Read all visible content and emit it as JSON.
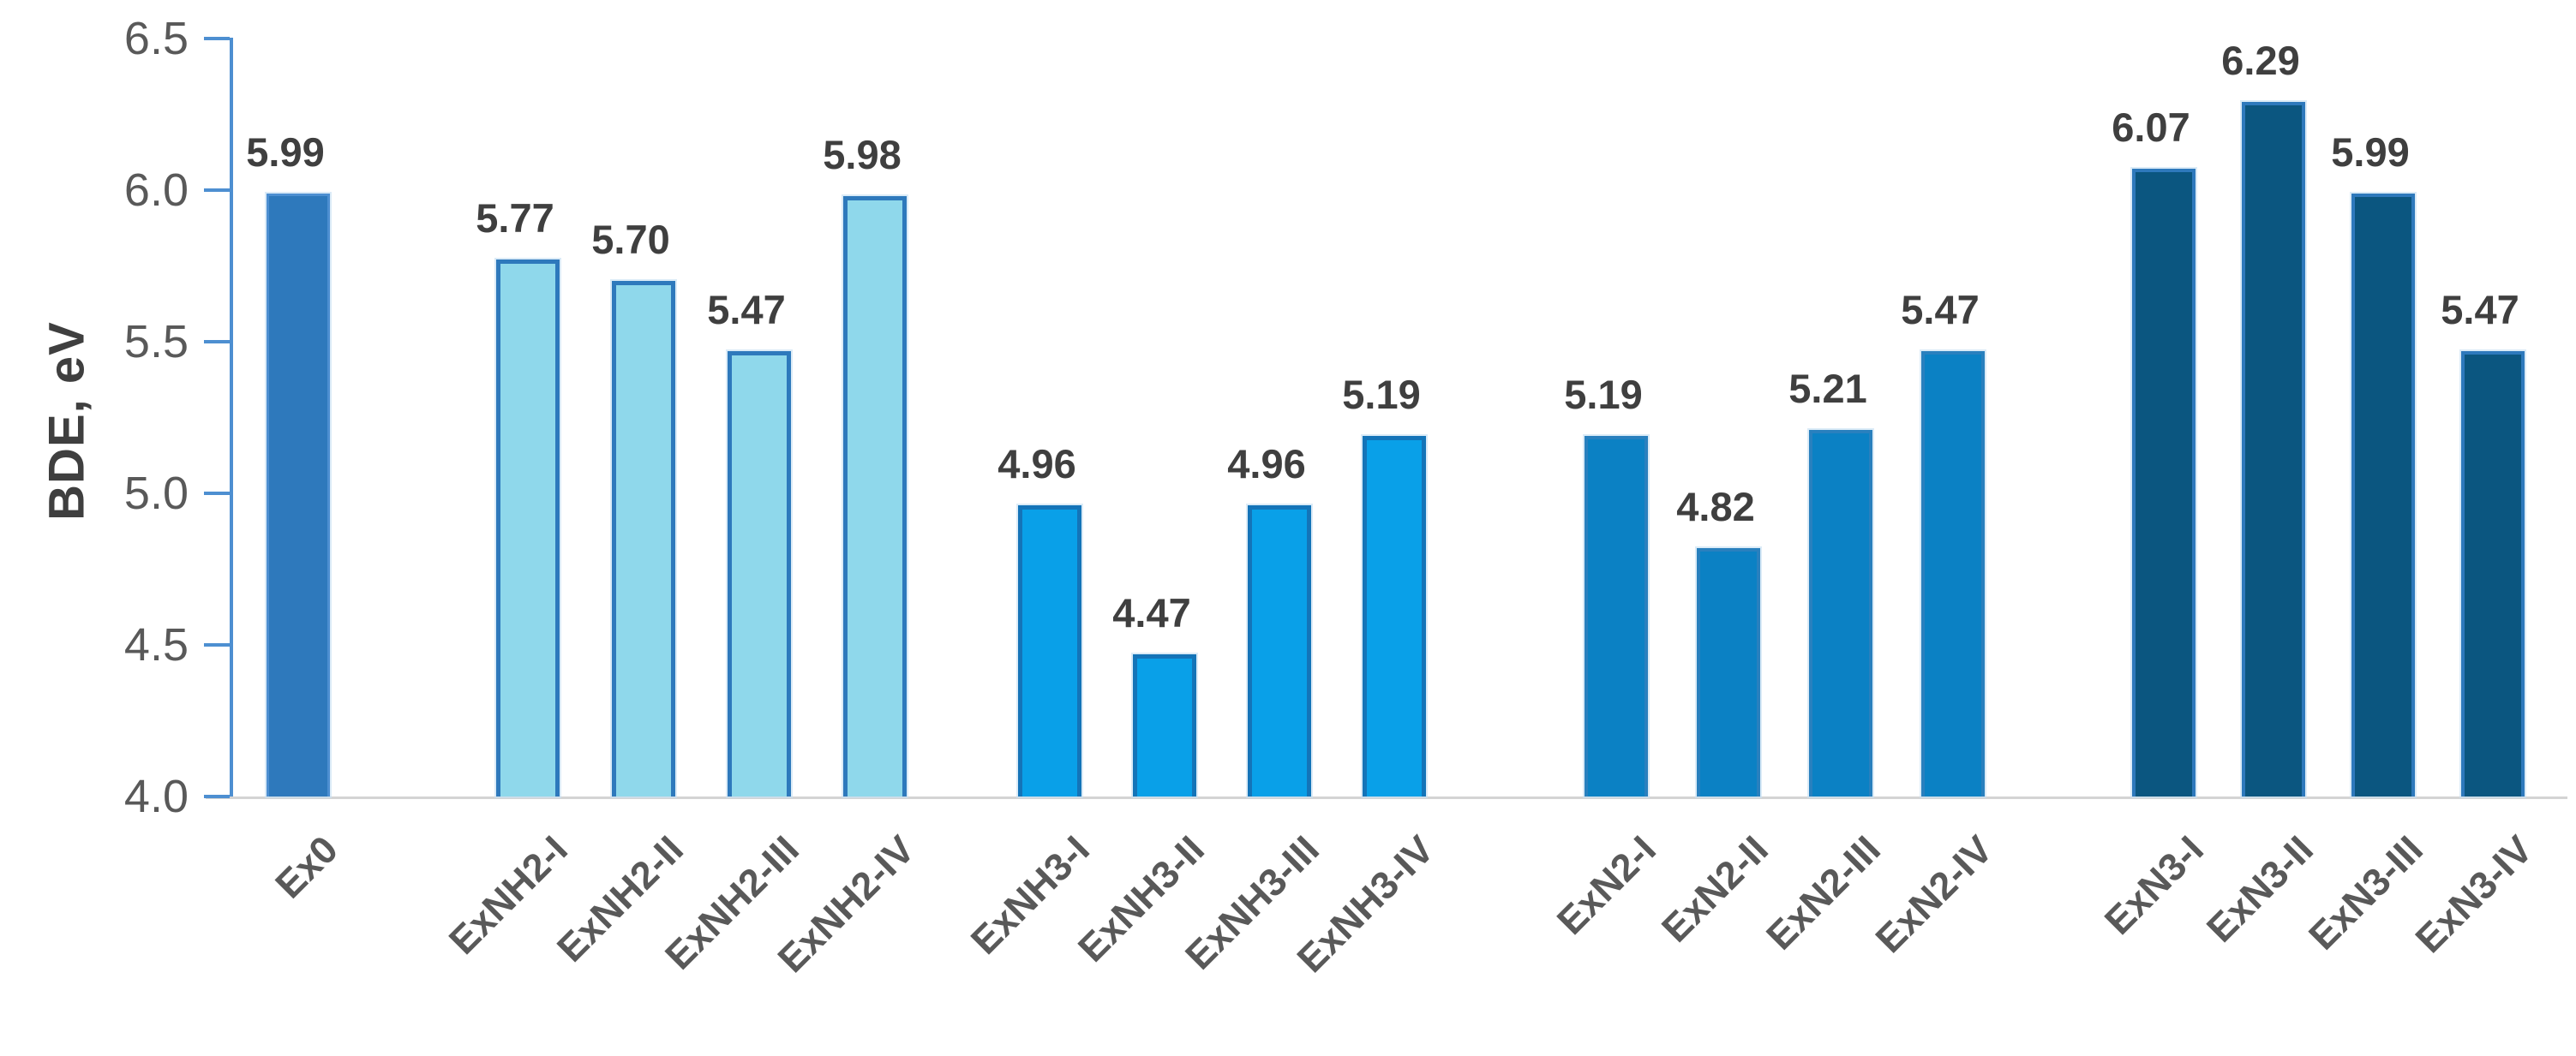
{
  "chart_data": {
    "type": "bar",
    "title": "",
    "xlabel": "",
    "ylabel": "BDE, eV",
    "ylim": [
      4.0,
      6.5
    ],
    "grid": false,
    "legend": "none",
    "yticks": [
      {
        "label": "6.5",
        "value": 6.5
      },
      {
        "label": "6.0",
        "value": 6.0
      },
      {
        "label": "5.5",
        "value": 5.5
      },
      {
        "label": "5.0",
        "value": 5.0
      },
      {
        "label": "4.5",
        "value": 4.5
      },
      {
        "label": "4.0",
        "value": 4.0
      }
    ],
    "categories": [
      "Ex0",
      "ExNH2-I",
      "ExNH2-II",
      "ExNH2-III",
      "ExNH2-IV",
      "ExNH3-I",
      "ExNH3-II",
      "ExNH3-III",
      "ExNH3-IV",
      "ExN2-I",
      "ExN2-II",
      "ExN2-III",
      "ExN2-IV",
      "ExN3-I",
      "ExN3-II",
      "ExN3-III",
      "ExN3-IV"
    ],
    "values": [
      5.99,
      5.77,
      5.7,
      5.47,
      5.98,
      4.96,
      4.47,
      4.96,
      5.19,
      5.19,
      4.82,
      5.21,
      5.47,
      6.07,
      6.29,
      5.99,
      5.47
    ],
    "data_labels": [
      "5.99",
      "5.77",
      "5.70",
      "5.47",
      "5.98",
      "4.96",
      "4.47",
      "4.96",
      "5.19",
      "5.19",
      "4.82",
      "5.21",
      "5.47",
      "6.07",
      "6.29",
      "5.99",
      "5.47"
    ],
    "groups": [
      {
        "name": "Ex0",
        "indices": [
          0
        ],
        "fill": "#2e79bc",
        "border": "#4d8fd1"
      },
      {
        "name": "ExNH2",
        "indices": [
          1,
          2,
          3,
          4
        ],
        "fill": "#8fd8eb",
        "border": "#2e79bc"
      },
      {
        "name": "ExNH3",
        "indices": [
          5,
          6,
          7,
          8
        ],
        "fill": "#09a0e8",
        "border": "#1474b8"
      },
      {
        "name": "ExN2",
        "indices": [
          9,
          10,
          11,
          12
        ],
        "fill": "#0b81c4",
        "border": "#2980be"
      },
      {
        "name": "ExN3",
        "indices": [
          13,
          14,
          15,
          16
        ],
        "fill": "#0b5680",
        "border": "#2e79bc"
      }
    ],
    "colors": {
      "axis": "#4d8fd1",
      "baseline": "#d4d4d4",
      "value_label": "#3f3f3f",
      "tick_label": "#595959",
      "axis_title": "#3f3f3f"
    }
  }
}
